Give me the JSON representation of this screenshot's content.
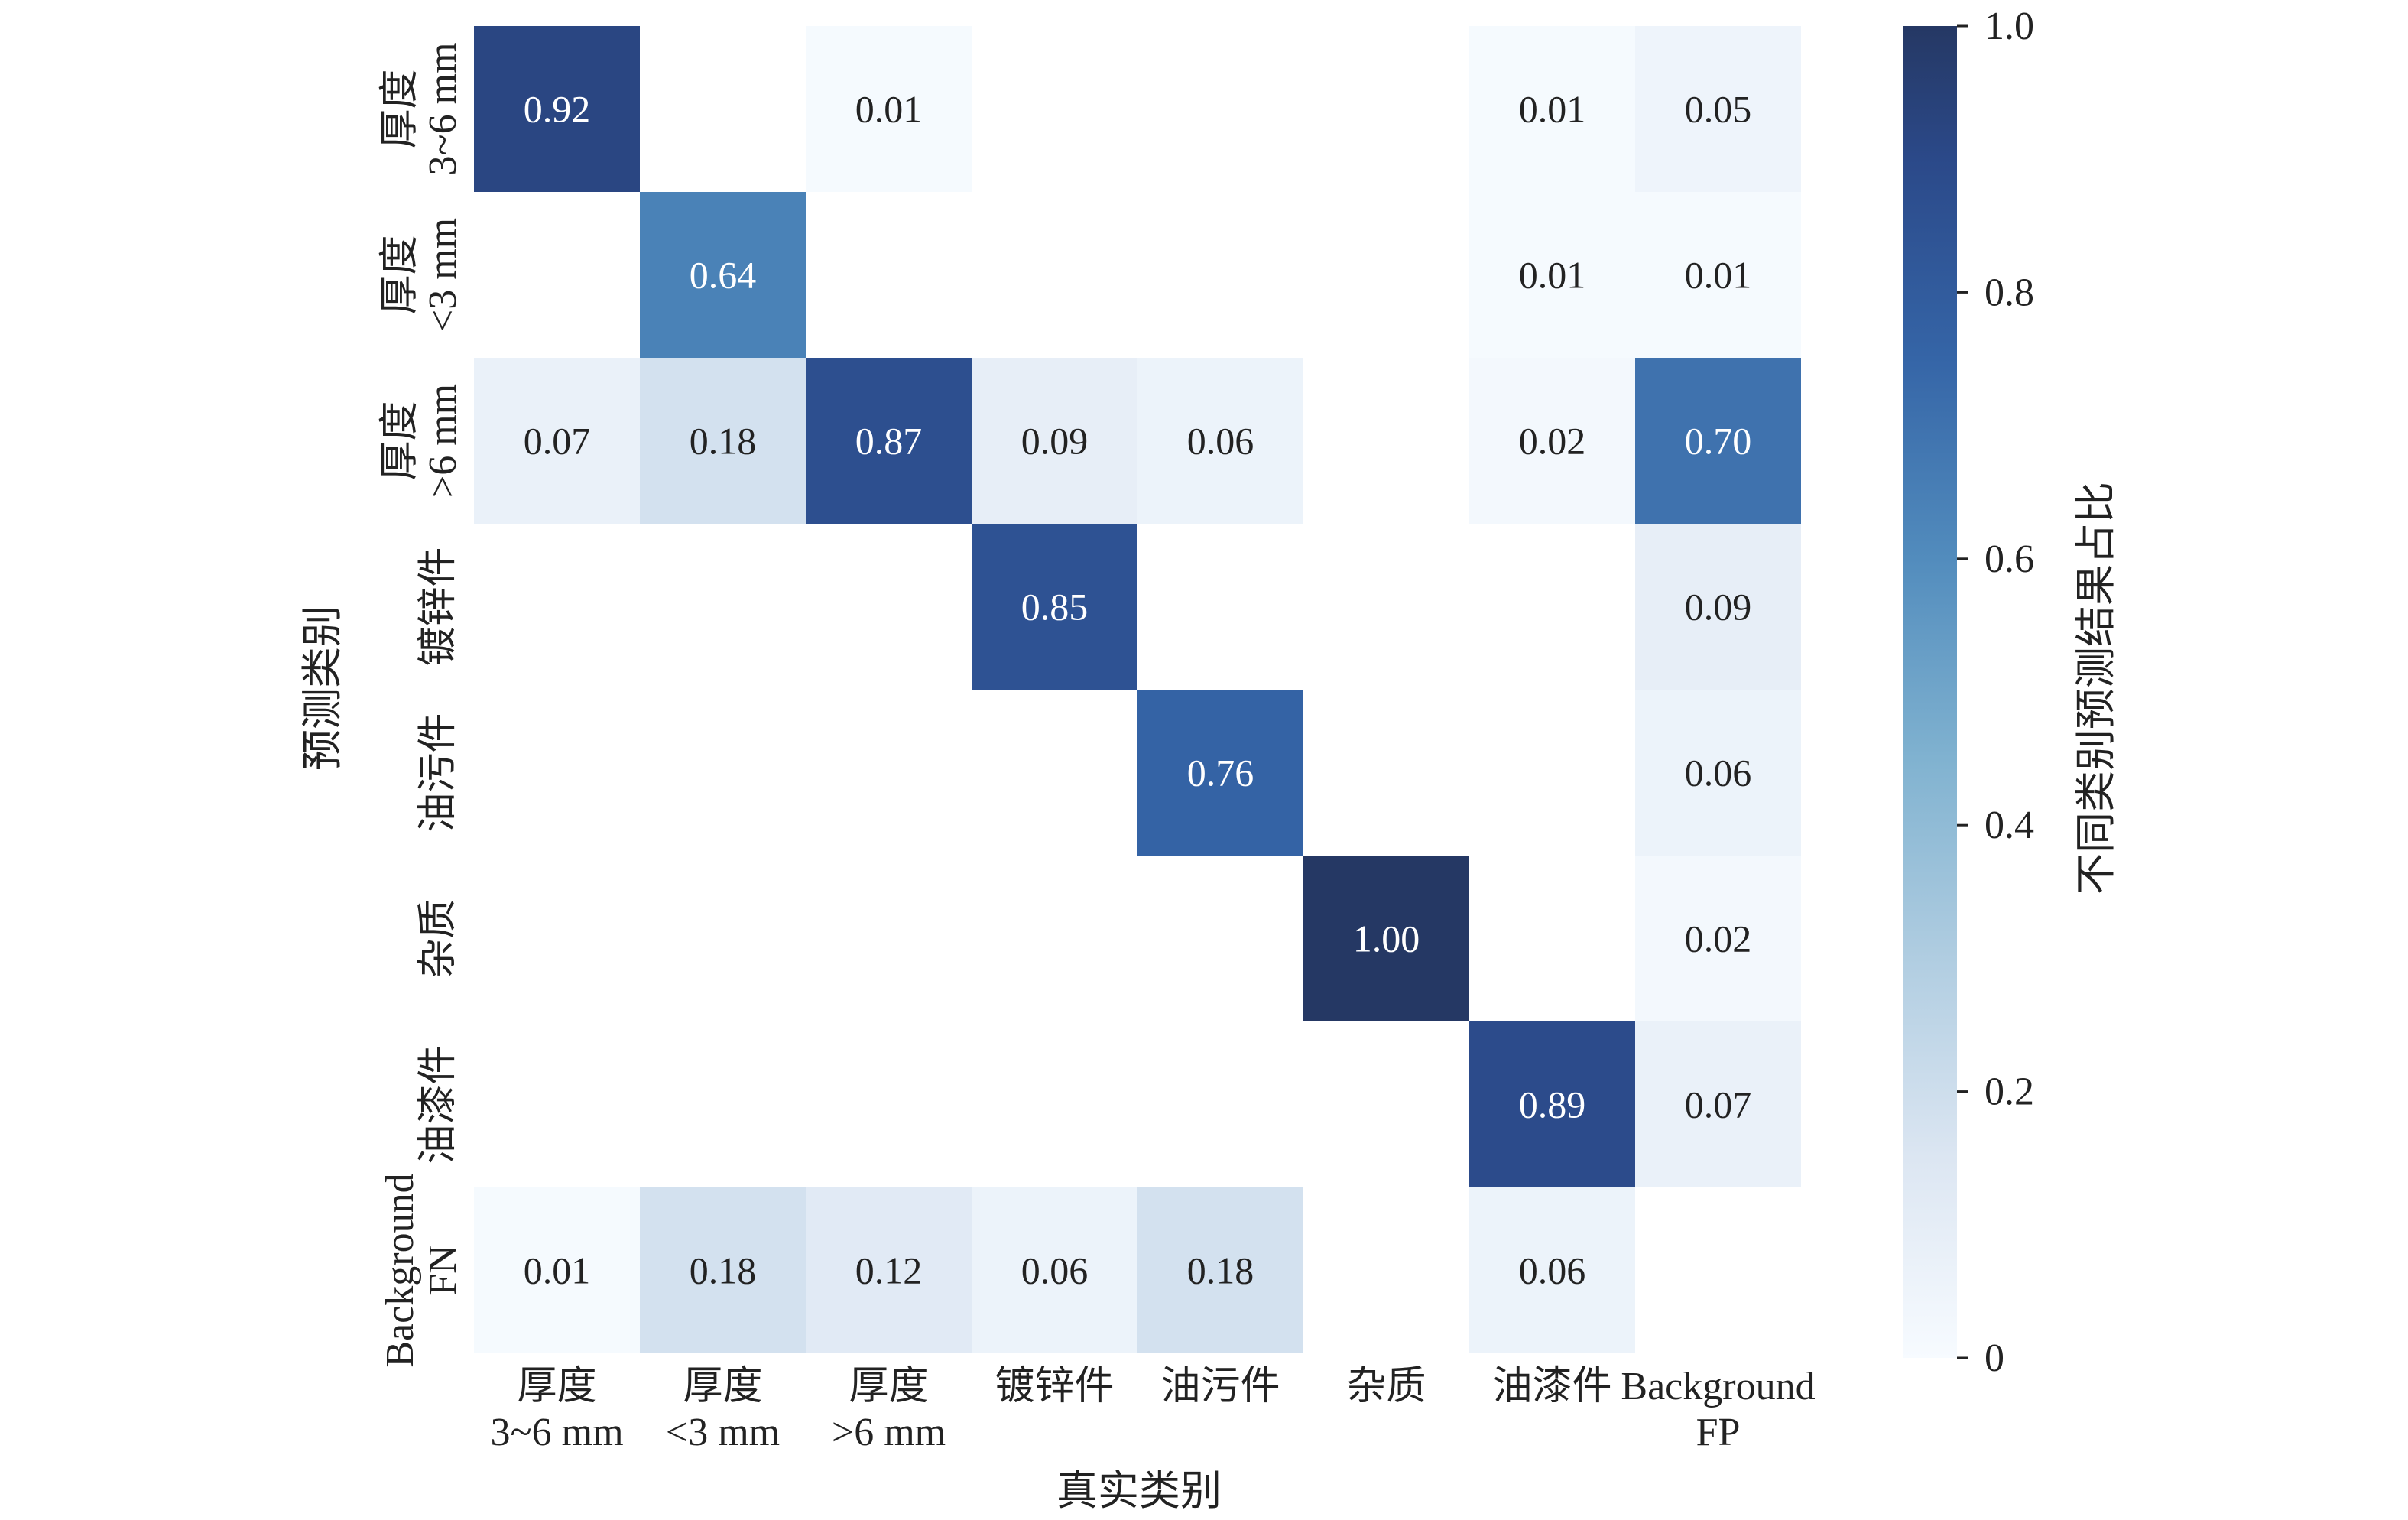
{
  "chart_data": {
    "type": "heatmap",
    "title": "",
    "xlabel": "真实类别",
    "ylabel": "预测类别",
    "x_categories": [
      [
        "厚度",
        "3~6 mm"
      ],
      [
        "厚度",
        "<3 mm"
      ],
      [
        "厚度",
        ">6 mm"
      ],
      [
        "镀锌件"
      ],
      [
        "油污件"
      ],
      [
        "杂质"
      ],
      [
        "油漆件"
      ],
      [
        "Background",
        "FP"
      ]
    ],
    "y_categories": [
      [
        "厚度",
        "3~6 mm"
      ],
      [
        "厚度",
        "<3 mm"
      ],
      [
        "厚度",
        ">6 mm"
      ],
      [
        "镀锌件"
      ],
      [
        "油污件"
      ],
      [
        "杂质"
      ],
      [
        "油漆件"
      ],
      [
        "Background",
        "FN"
      ]
    ],
    "values": [
      [
        0.92,
        null,
        0.01,
        null,
        null,
        null,
        0.01,
        0.05
      ],
      [
        null,
        0.64,
        null,
        null,
        null,
        null,
        0.01,
        0.01
      ],
      [
        0.07,
        0.18,
        0.87,
        0.09,
        0.06,
        null,
        0.02,
        0.7
      ],
      [
        null,
        null,
        null,
        0.85,
        null,
        null,
        null,
        0.09
      ],
      [
        null,
        null,
        null,
        null,
        0.76,
        null,
        null,
        0.06
      ],
      [
        null,
        null,
        null,
        null,
        null,
        1.0,
        null,
        0.02
      ],
      [
        null,
        null,
        null,
        null,
        null,
        null,
        0.89,
        0.07
      ],
      [
        0.01,
        0.18,
        0.12,
        0.06,
        0.18,
        null,
        0.06,
        null
      ]
    ],
    "value_labels": [
      [
        "0.92",
        "",
        "0.01",
        "",
        "",
        "",
        "0.01",
        "0.05"
      ],
      [
        "",
        "0.64",
        "",
        "",
        "",
        "",
        "0.01",
        "0.01"
      ],
      [
        "0.07",
        "0.18",
        "0.87",
        "0.09",
        "0.06",
        "",
        "0.02",
        "0.70"
      ],
      [
        "",
        "",
        "",
        "0.85",
        "",
        "",
        "",
        "0.09"
      ],
      [
        "",
        "",
        "",
        "",
        "0.76",
        "",
        "",
        "0.06"
      ],
      [
        "",
        "",
        "",
        "",
        "",
        "1.00",
        "",
        "0.02"
      ],
      [
        "",
        "",
        "",
        "",
        "",
        "",
        "0.89",
        "0.07"
      ],
      [
        "0.01",
        "0.18",
        "0.12",
        "0.06",
        "0.18",
        "",
        "0.06",
        ""
      ]
    ],
    "colorbar": {
      "label": "不同类别预测结果占比",
      "range": [
        0,
        1
      ],
      "ticks": [
        0,
        0.2,
        0.4,
        0.6,
        0.8,
        1.0
      ],
      "tick_labels": [
        "0",
        "0.2",
        "0.4",
        "0.6",
        "0.8",
        "1.0"
      ]
    },
    "colormap": "Blues",
    "colors": {
      "low": "#f7fbff",
      "high": "#253a64",
      "empty": "#ffffff"
    },
    "grid": false
  }
}
